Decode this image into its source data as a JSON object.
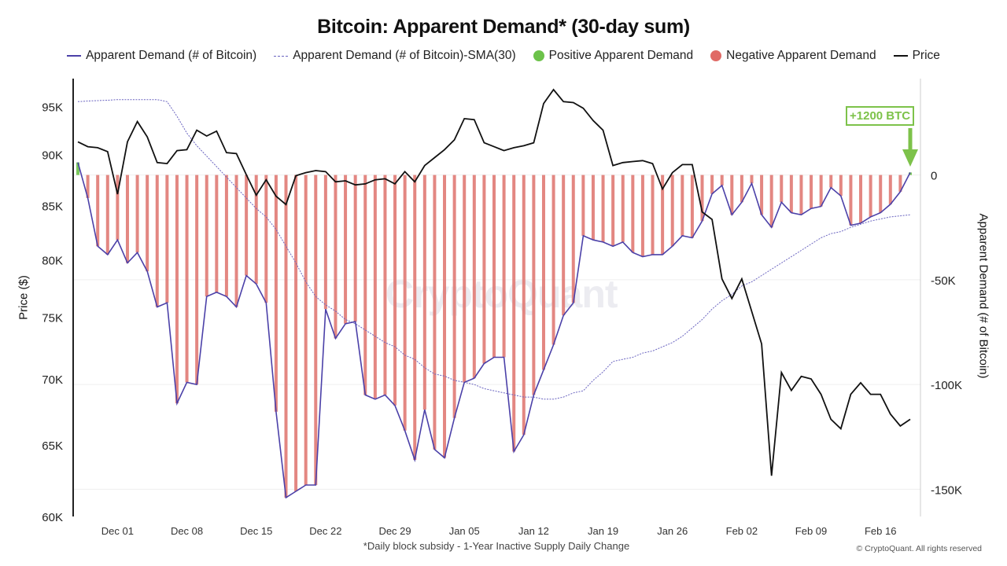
{
  "chart_data": {
    "type": "line",
    "title": "Bitcoin: Apparent Demand* (30-day sum)",
    "footnote": "*Daily block subsidy - 1-Year Inactive Supply Daily Change",
    "copyright": "© CryptoQuant. All rights reserved",
    "watermark": "CryptoQuant",
    "ylabel_left": "Price ($)",
    "ylabel_right": "Apparent Demand (# of Bitcoin)",
    "left_axis": {
      "scale": "log",
      "ylim": [
        60000,
        98000
      ],
      "ticks": [
        60000,
        65000,
        70000,
        75000,
        80000,
        85000,
        90000,
        95000
      ],
      "tick_labels": [
        "60K",
        "65K",
        "70K",
        "75K",
        "80K",
        "85K",
        "90K",
        "95K"
      ]
    },
    "right_axis": {
      "scale": "linear",
      "ylim": [
        -163000,
        46000
      ],
      "ticks": [
        0,
        -50000,
        -100000,
        -150000
      ],
      "tick_labels": [
        "0",
        "-50K",
        "-100K",
        "-150K"
      ]
    },
    "x_tick_labels": [
      "Dec 01",
      "Dec 08",
      "Dec 15",
      "Dec 22",
      "Dec 29",
      "Jan 05",
      "Jan 12",
      "Jan 19",
      "Jan 26",
      "Feb 02",
      "Feb 09",
      "Feb 16"
    ],
    "grid": "horizontal",
    "legend_position": "top",
    "legend": [
      {
        "label": "Apparent Demand (# of Bitcoin)",
        "style": "line",
        "color": "#4b40a8"
      },
      {
        "label": "Apparent Demand (# of Bitcoin)-SMA(30)",
        "style": "dashed",
        "color": "#6a64c0"
      },
      {
        "label": "Positive Apparent Demand",
        "style": "dot",
        "color": "#6cc24a"
      },
      {
        "label": "Negative Apparent Demand",
        "style": "dot",
        "color": "#e06a66"
      },
      {
        "label": "Price",
        "style": "line",
        "color": "#111111"
      }
    ],
    "annotation": "+1200 BTC",
    "x": [
      "Nov 27",
      "Nov 28",
      "Nov 29",
      "Nov 30",
      "Dec 01",
      "Dec 02",
      "Dec 03",
      "Dec 04",
      "Dec 05",
      "Dec 06",
      "Dec 07",
      "Dec 08",
      "Dec 09",
      "Dec 10",
      "Dec 11",
      "Dec 12",
      "Dec 13",
      "Dec 14",
      "Dec 15",
      "Dec 16",
      "Dec 17",
      "Dec 18",
      "Dec 19",
      "Dec 20",
      "Dec 21",
      "Dec 22",
      "Dec 23",
      "Dec 24",
      "Dec 25",
      "Dec 26",
      "Dec 27",
      "Dec 28",
      "Dec 29",
      "Dec 30",
      "Dec 31",
      "Jan 01",
      "Jan 02",
      "Jan 03",
      "Jan 04",
      "Jan 05",
      "Jan 06",
      "Jan 07",
      "Jan 08",
      "Jan 09",
      "Jan 10",
      "Jan 11",
      "Jan 12",
      "Jan 13",
      "Jan 14",
      "Jan 15",
      "Jan 16",
      "Jan 17",
      "Jan 18",
      "Jan 19",
      "Jan 20",
      "Jan 21",
      "Jan 22",
      "Jan 23",
      "Jan 24",
      "Jan 25",
      "Jan 26",
      "Jan 27",
      "Jan 28",
      "Jan 29",
      "Jan 30",
      "Jan 31",
      "Feb 01",
      "Feb 02",
      "Feb 03",
      "Feb 04",
      "Feb 05",
      "Feb 06",
      "Feb 07",
      "Feb 08",
      "Feb 09",
      "Feb 10",
      "Feb 11",
      "Feb 12",
      "Feb 13",
      "Feb 14",
      "Feb 15",
      "Feb 16",
      "Feb 17",
      "Feb 18",
      "Feb 19"
    ],
    "series": [
      {
        "name": "Apparent Demand (# of Bitcoin)",
        "axis": "right",
        "values": [
          6000,
          -11000,
          -34000,
          -38000,
          -31000,
          -42000,
          -37000,
          -46000,
          -63000,
          -61000,
          -109000,
          -99000,
          -100000,
          -58000,
          -56000,
          -58000,
          -63000,
          -48000,
          -52000,
          -61000,
          -113000,
          -154000,
          -151000,
          -148000,
          -148000,
          -64000,
          -78000,
          -71000,
          -70000,
          -105000,
          -107000,
          -105000,
          -110000,
          -122000,
          -136000,
          -112000,
          -131000,
          -135000,
          -116000,
          -99000,
          -97000,
          -90000,
          -87000,
          -87000,
          -132000,
          -124000,
          -105000,
          -93000,
          -81000,
          -67000,
          -61000,
          -29000,
          -31000,
          -32000,
          -34000,
          -32000,
          -37000,
          -39000,
          -38000,
          -38000,
          -34000,
          -29000,
          -30000,
          -22000,
          -9000,
          -5000,
          -19000,
          -13000,
          -4000,
          -19000,
          -25000,
          -13000,
          -18000,
          -19000,
          -16000,
          -15000,
          -6000,
          -10000,
          -24000,
          -23000,
          -20000,
          -18000,
          -14000,
          -8000,
          1200
        ]
      },
      {
        "name": "Apparent Demand (# of Bitcoin)-SMA(30)",
        "axis": "right",
        "values": [
          35000,
          35300,
          35500,
          35700,
          36000,
          36000,
          36000,
          36000,
          36000,
          35000,
          28000,
          20000,
          14000,
          9000,
          4000,
          -1000,
          -6000,
          -11000,
          -16000,
          -20000,
          -26000,
          -34000,
          -42000,
          -51000,
          -58000,
          -62000,
          -65000,
          -69000,
          -71000,
          -74000,
          -77000,
          -80000,
          -82000,
          -86000,
          -88000,
          -92000,
          -95000,
          -96000,
          -98000,
          -99000,
          -100000,
          -102000,
          -103000,
          -104000,
          -105000,
          -106000,
          -106000,
          -107000,
          -107000,
          -106000,
          -104000,
          -103000,
          -98000,
          -94000,
          -89000,
          -88000,
          -87000,
          -85000,
          -84000,
          -82000,
          -80000,
          -77000,
          -73000,
          -69000,
          -64000,
          -60000,
          -57000,
          -53000,
          -51000,
          -48000,
          -45000,
          -42000,
          -39000,
          -36000,
          -33000,
          -30000,
          -28000,
          -27000,
          -25000,
          -23500,
          -22000,
          -21000,
          -20000,
          -19500,
          -19000
        ]
      },
      {
        "name": "Price",
        "axis": "left",
        "values": [
          91300,
          90800,
          90700,
          90300,
          86100,
          91300,
          93400,
          91800,
          89200,
          89100,
          90400,
          90500,
          92500,
          91900,
          92400,
          90200,
          90100,
          88000,
          86000,
          87500,
          85900,
          85100,
          87900,
          88200,
          88400,
          88300,
          87300,
          87400,
          87000,
          87100,
          87500,
          87600,
          87100,
          88300,
          87300,
          88900,
          89700,
          90500,
          91500,
          93700,
          93600,
          91200,
          90800,
          90400,
          90700,
          90900,
          91200,
          95300,
          96800,
          95500,
          95400,
          94800,
          93500,
          92500,
          88900,
          89200,
          89300,
          89400,
          89100,
          86600,
          88200,
          89000,
          89000,
          84400,
          83700,
          78300,
          76600,
          78300,
          75500,
          72800,
          62800,
          70500,
          69100,
          70200,
          70000,
          68800,
          66900,
          66200,
          68800,
          69700,
          68800,
          68800,
          67300,
          66400,
          66900
        ]
      }
    ]
  }
}
